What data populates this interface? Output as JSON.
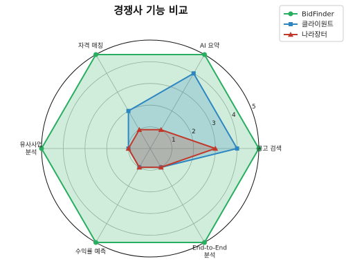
{
  "chart_data": {
    "type": "radar",
    "title": "경쟁사 기능 비교",
    "categories": [
      "공고 검색",
      "AI 요약",
      "자격 매칭",
      "유사사업\n분석",
      "수익률 예측",
      "End-to-End\n분석"
    ],
    "rlim": [
      0,
      5
    ],
    "rticks": [
      1,
      2,
      3,
      4,
      5
    ],
    "grid": true,
    "legend_position": "top-right",
    "series": [
      {
        "name": "BidFinder",
        "values": [
          5,
          5,
          5,
          5,
          5,
          5
        ],
        "color": "#27ae60",
        "marker": "circle"
      },
      {
        "name": "클라이원트",
        "values": [
          4,
          4,
          2,
          1,
          1,
          1
        ],
        "color": "#2e86c1",
        "marker": "square"
      },
      {
        "name": "나라장터",
        "values": [
          3,
          1,
          1,
          1,
          1,
          1
        ],
        "color": "#c0392b",
        "marker": "triangle"
      }
    ]
  }
}
